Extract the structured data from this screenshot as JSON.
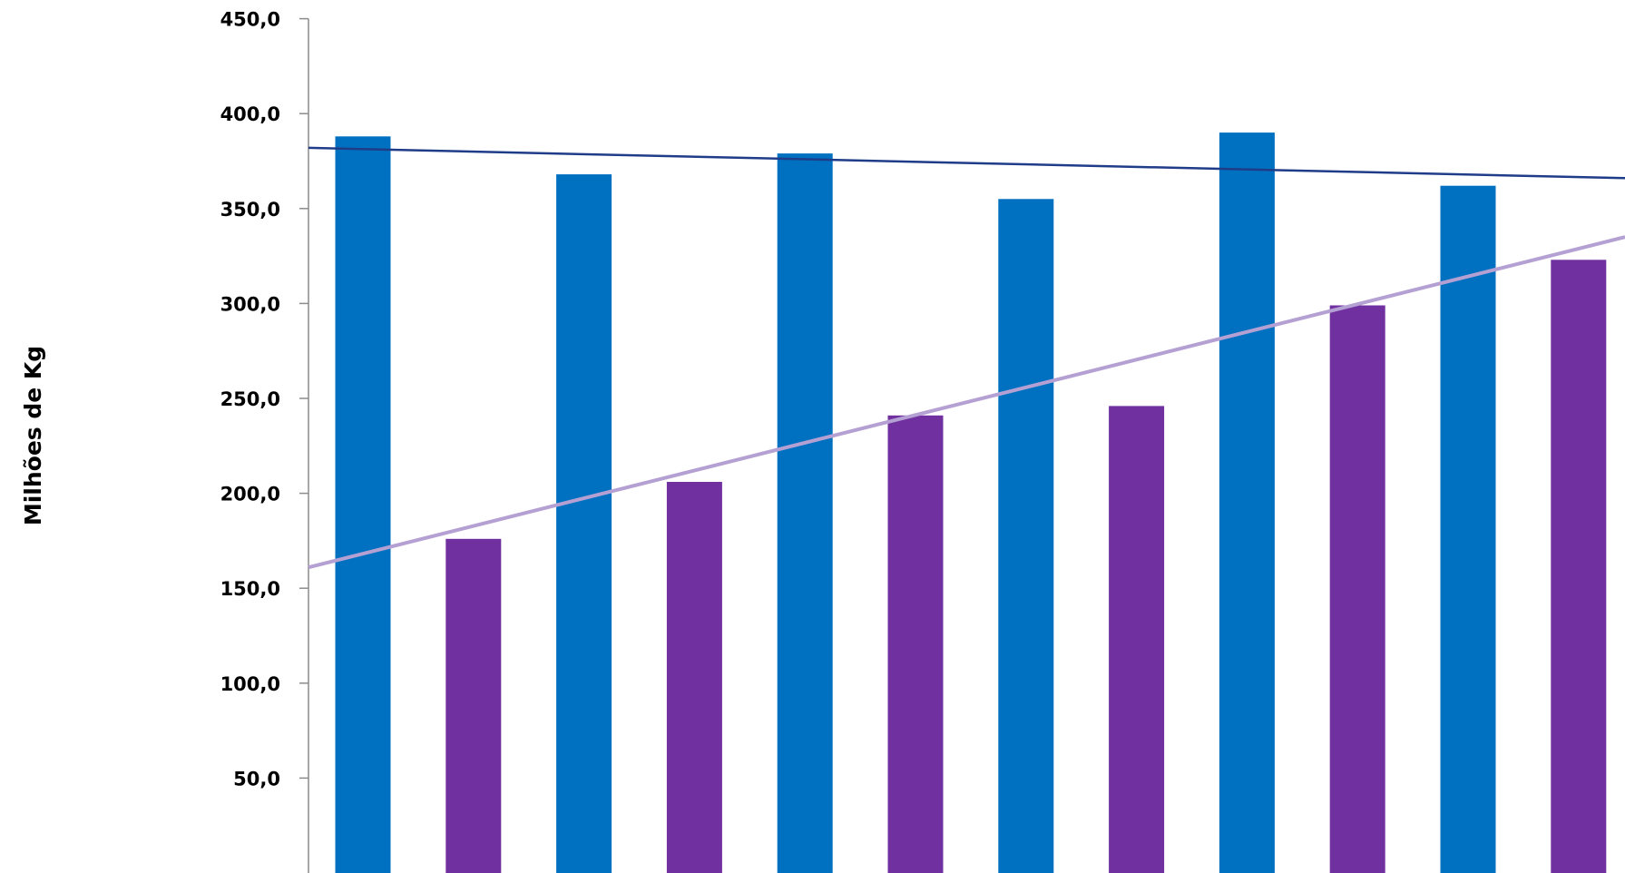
{
  "chart_data": {
    "type": "bar",
    "title": "",
    "xlabel": "",
    "ylabel": "Milhões de Kg",
    "ylim": [
      0,
      450
    ],
    "ytick_step": 50,
    "ytick_labels": [
      "50,0",
      "100,0",
      "150,0",
      "200,0",
      "250,0",
      "300,0",
      "350,0",
      "400,0",
      "450,0"
    ],
    "grid": false,
    "legend": "none",
    "bar_values": [
      388,
      176,
      368,
      206,
      379,
      241,
      355,
      246,
      390,
      299,
      362,
      323
    ],
    "bar_colors": [
      "#0070C0",
      "#7030A0",
      "#0070C0",
      "#7030A0",
      "#0070C0",
      "#7030A0",
      "#0070C0",
      "#7030A0",
      "#0070C0",
      "#7030A0",
      "#0070C0",
      "#7030A0"
    ],
    "trendlines": [
      {
        "color": "#1F3C88",
        "start_value": 382,
        "end_value": 366
      },
      {
        "color": "#B4A0D2",
        "start_value": 161,
        "end_value": 335
      }
    ]
  }
}
